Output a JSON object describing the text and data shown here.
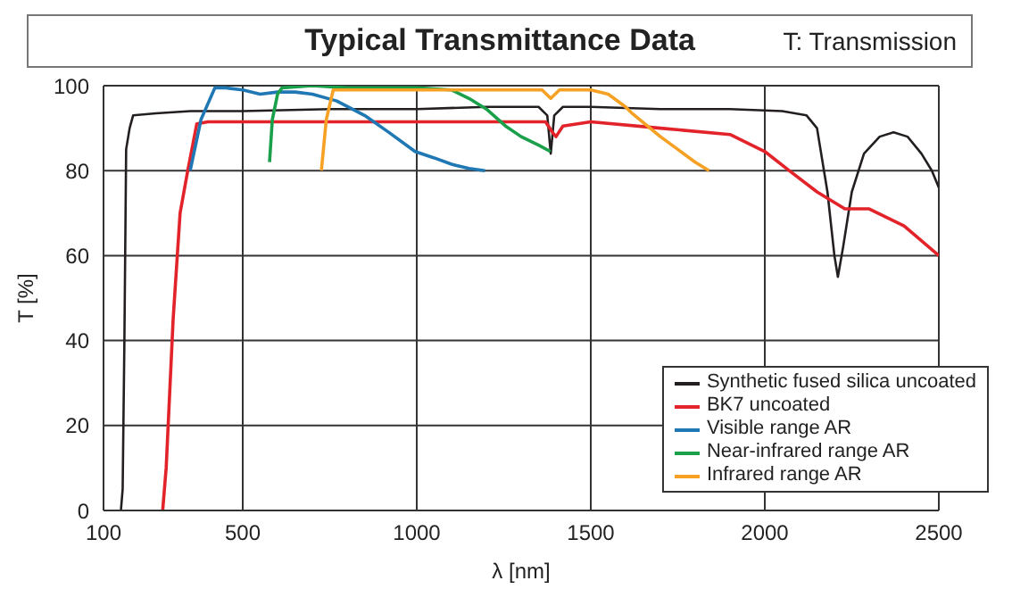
{
  "chart_data": {
    "type": "line",
    "title": "Typical Transmittance Data",
    "subtitle": "T: Transmission",
    "xlabel": "λ [nm]",
    "ylabel": "T [%]",
    "xlim": [
      100,
      2500
    ],
    "xticks": [
      100,
      500,
      1000,
      1500,
      2000,
      2500
    ],
    "ylim": [
      0,
      100
    ],
    "yticks": [
      0,
      20,
      40,
      60,
      80,
      100
    ],
    "grid": true,
    "legend": "bottom right",
    "marker": "none",
    "line_style": "solid",
    "series": [
      {
        "name": "Synthetic fused silica uncoated",
        "color": "#231f20",
        "x": [
          150,
          155,
          160,
          165,
          175,
          185,
          250,
          350,
          500,
          750,
          1000,
          1200,
          1350,
          1375,
          1385,
          1395,
          1420,
          1500,
          1700,
          1900,
          2050,
          2120,
          2150,
          2180,
          2200,
          2210,
          2225,
          2250,
          2285,
          2330,
          2370,
          2410,
          2450,
          2480,
          2500
        ],
        "values": [
          0,
          5,
          40,
          85,
          90,
          93,
          93.5,
          94,
          94,
          94.5,
          94.5,
          95,
          95,
          93,
          84,
          93,
          95,
          95,
          94.5,
          94.5,
          94,
          93,
          90,
          75,
          60,
          55,
          62,
          75,
          84,
          88,
          89,
          88,
          84,
          80,
          76
        ]
      },
      {
        "name": "BK7 uncoated",
        "color": "#e2232a",
        "x": [
          270,
          280,
          300,
          320,
          342,
          368,
          400,
          700,
          1000,
          1370,
          1390,
          1400,
          1420,
          1500,
          1700,
          1900,
          2000,
          2070,
          2150,
          2230,
          2300,
          2400,
          2500
        ],
        "values": [
          0,
          10,
          45,
          70,
          80,
          91,
          91.5,
          91.5,
          91.5,
          91.5,
          89,
          88,
          90.5,
          91.5,
          90,
          88.5,
          84.5,
          80,
          75,
          71,
          71,
          67,
          60
        ]
      },
      {
        "name": "Visible range AR",
        "color": "#1f77b4",
        "x": [
          349,
          380,
          420,
          450,
          500,
          550,
          600,
          650,
          700,
          770,
          850,
          920,
          995,
          1050,
          1100,
          1150,
          1196
        ],
        "values": [
          80,
          92,
          99.5,
          99.5,
          99,
          98,
          98.5,
          98.5,
          98,
          96.4,
          93,
          89,
          84.5,
          83,
          81.5,
          80.5,
          80
        ]
      },
      {
        "name": "Near-infrared range AR",
        "color": "#1aa04a",
        "x": [
          577,
          585,
          600,
          613,
          700,
          800,
          900,
          1000,
          1100,
          1150,
          1200,
          1255,
          1300,
          1350,
          1384
        ],
        "values": [
          82,
          92,
          98,
          99.5,
          100,
          99.5,
          99.5,
          99.5,
          99,
          97,
          94.5,
          90.5,
          88,
          86,
          84.5
        ]
      },
      {
        "name": "Infrared range AR",
        "color": "#f7a124",
        "x": [
          726,
          740,
          760,
          800,
          1000,
          1200,
          1360,
          1385,
          1410,
          1500,
          1550,
          1600,
          1620,
          1700,
          1750,
          1800,
          1840
        ],
        "values": [
          80,
          92,
          99,
          99,
          99,
          99,
          99,
          97,
          99,
          99,
          98,
          95,
          93.4,
          88,
          85,
          82,
          80
        ]
      }
    ]
  }
}
